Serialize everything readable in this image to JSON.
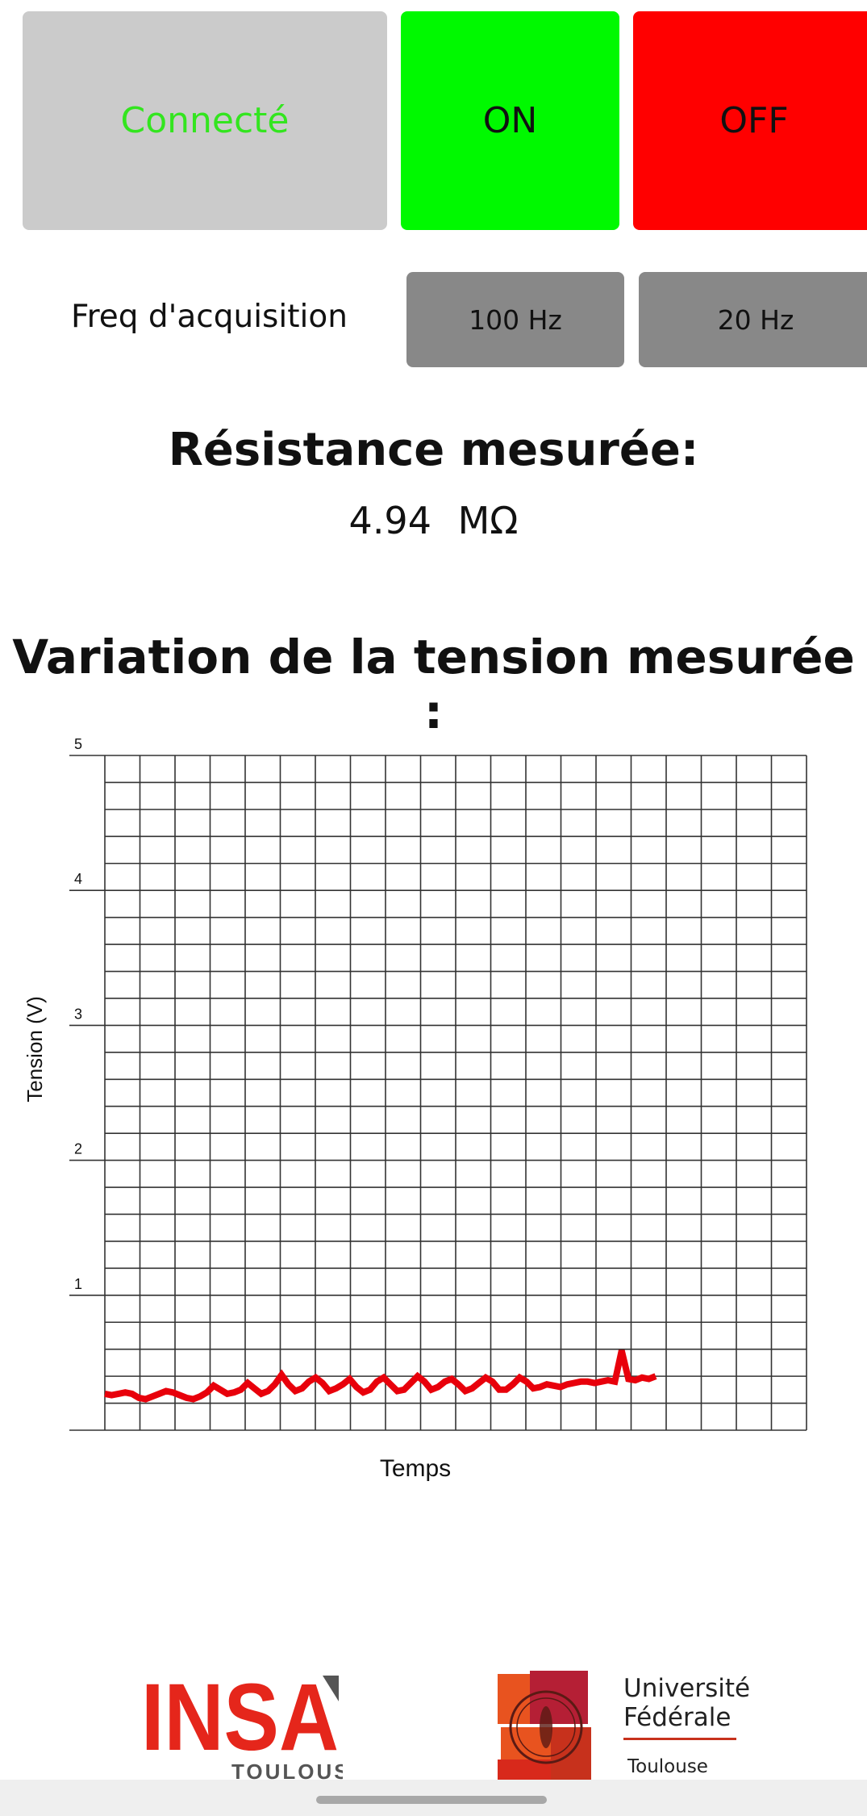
{
  "controls": {
    "connected_label": "Connecté",
    "on_label": "ON",
    "off_label": "OFF",
    "freq_label": "Freq d'acquisition",
    "freq_100_label": "100 Hz",
    "freq_20_label": "20 Hz"
  },
  "resistance": {
    "title": "Résistance mesurée:",
    "value": "4.94 MΩ"
  },
  "chart_title": "Variation de la tension mesurée :",
  "colors": {
    "connected_bg": "#cbcbcb",
    "connected_text": "#33e51f",
    "on_bg": "#00f900",
    "off_bg": "#ff0000",
    "freq_btn_bg": "#888888",
    "series": "#e8000b"
  },
  "chart_data": {
    "type": "line",
    "title": "",
    "xlabel": "Temps",
    "ylabel": "Tension (V)",
    "ylim": [
      0,
      5
    ],
    "y_ticks": [
      "1",
      "2",
      "3",
      "4",
      "5"
    ],
    "grid": true,
    "x_divisions": 20,
    "series": [
      {
        "values": [
          0.27,
          0.26,
          0.27,
          0.28,
          0.27,
          0.24,
          0.23,
          0.25,
          0.27,
          0.29,
          0.28,
          0.26,
          0.24,
          0.23,
          0.25,
          0.28,
          0.33,
          0.3,
          0.27,
          0.28,
          0.3,
          0.35,
          0.31,
          0.27,
          0.29,
          0.34,
          0.41,
          0.34,
          0.29,
          0.31,
          0.36,
          0.39,
          0.35,
          0.29,
          0.31,
          0.34,
          0.38,
          0.32,
          0.28,
          0.3,
          0.36,
          0.39,
          0.34,
          0.29,
          0.3,
          0.35,
          0.4,
          0.36,
          0.3,
          0.32,
          0.36,
          0.38,
          0.34,
          0.29,
          0.31,
          0.35,
          0.39,
          0.36,
          0.3,
          0.3,
          0.34,
          0.39,
          0.36,
          0.31,
          0.32,
          0.34,
          0.33,
          0.32,
          0.34,
          0.35,
          0.36,
          0.36,
          0.35,
          0.36,
          0.37,
          0.36,
          0.59,
          0.38,
          0.37,
          0.39,
          0.38,
          0.4
        ]
      }
    ],
    "x_extent_fraction": 0.785
  },
  "logos": {
    "insa_text": "INSA",
    "insa_sub": "TOULOUSE",
    "ufr_line1": "Université",
    "ufr_line2": "Fédérale",
    "ufr_line3": "Toulouse"
  }
}
